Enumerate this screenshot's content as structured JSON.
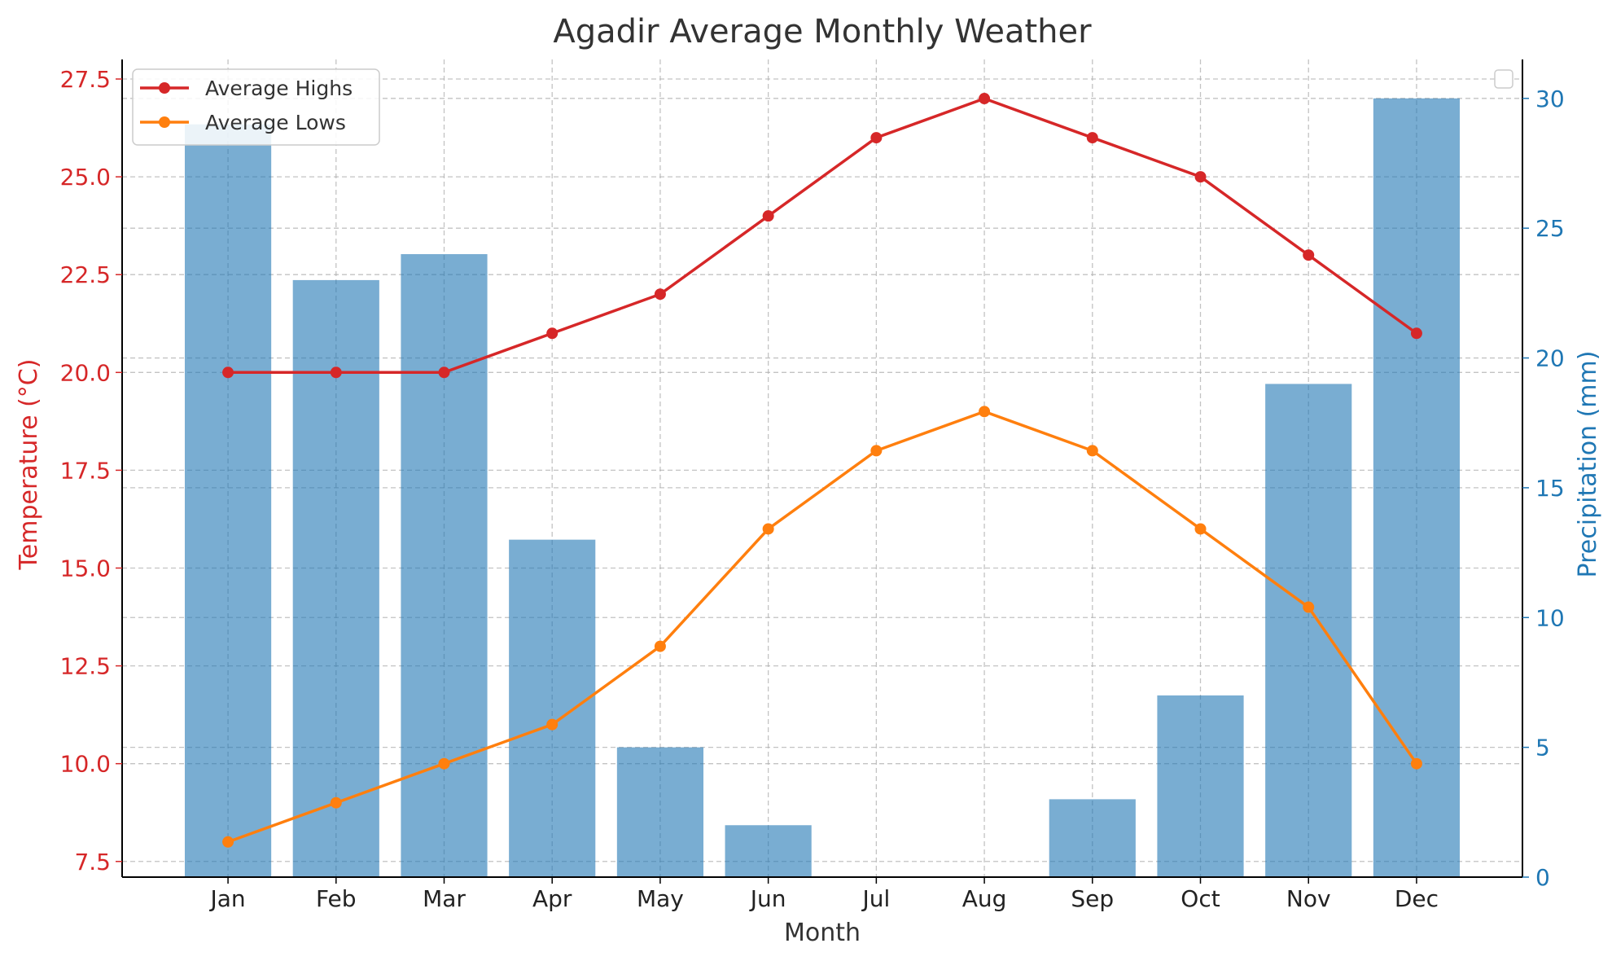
{
  "chart_data": {
    "type": "bar+line",
    "title": "Agadir Average Monthly Weather",
    "xlabel": "Month",
    "ylabel_left": "Temperature (°C)",
    "ylabel_right": "Precipitation (mm)",
    "categories": [
      "Jan",
      "Feb",
      "Mar",
      "Apr",
      "May",
      "Jun",
      "Jul",
      "Aug",
      "Sep",
      "Oct",
      "Nov",
      "Dec"
    ],
    "ylim_left": [
      7.1,
      28.0
    ],
    "yticks_left": [
      "7.5",
      "10.0",
      "12.5",
      "15.0",
      "17.5",
      "20.0",
      "22.5",
      "25.0",
      "27.5"
    ],
    "ylim_right": [
      0,
      31.5
    ],
    "yticks_right": [
      "0",
      "5",
      "10",
      "15",
      "20",
      "25",
      "30"
    ],
    "grid": true,
    "legend_position": "top-left",
    "bars": {
      "axis": "right",
      "color": "#1f77b4",
      "opacity": 0.6,
      "values": [
        29,
        23,
        24,
        13,
        5,
        2,
        0,
        0,
        3,
        7,
        19,
        30
      ]
    },
    "series": [
      {
        "name": "Average Highs",
        "axis": "left",
        "color": "#d62728",
        "values": [
          20,
          20,
          20,
          21,
          22,
          24,
          26,
          27,
          26,
          25,
          23,
          21
        ]
      },
      {
        "name": "Average Lows",
        "axis": "left",
        "color": "#ff7f0e",
        "values": [
          8,
          9,
          10,
          11,
          13,
          16,
          18,
          19,
          18,
          16,
          14,
          10
        ]
      }
    ],
    "colors": {
      "left_axis": "#d62728",
      "right_axis": "#1f77b4",
      "text": "#333333",
      "grid": "#b0b0b0"
    }
  }
}
